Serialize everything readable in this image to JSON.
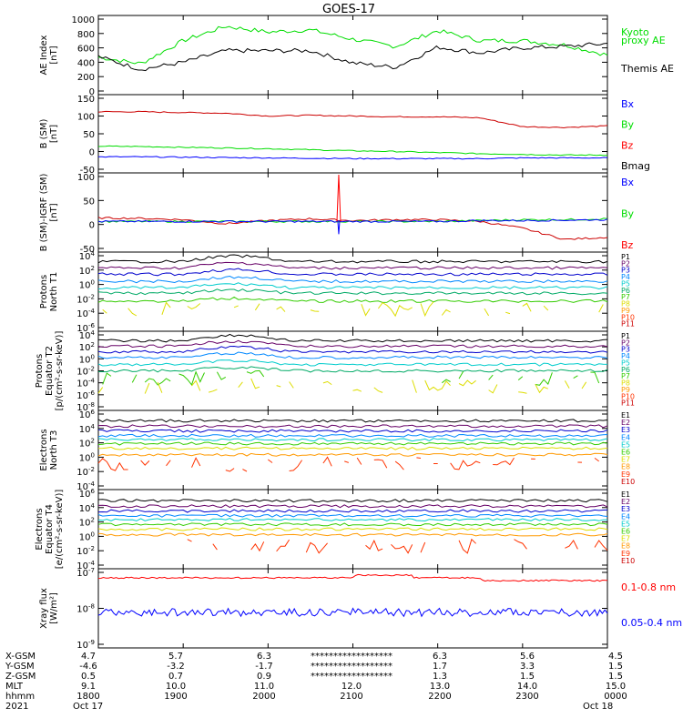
{
  "title": "GOES-17",
  "colors": {
    "black": "#000000",
    "red": "#ff0000",
    "green": "#00dd00",
    "blue": "#0000ff",
    "darkred": "#cc0000",
    "axis": "#000000"
  },
  "panels": [
    {
      "id": "ae",
      "ylabel": [
        "AE Index",
        "[nT]"
      ],
      "ticks": [
        "1000",
        "800",
        "600",
        "400",
        "200",
        "0"
      ],
      "legend": [
        {
          "text": "Kyoto",
          "color": "#00dd00"
        },
        {
          "text": "proxy AE",
          "color": "#00dd00"
        },
        {
          "text": "Themis AE",
          "color": "#000000"
        }
      ]
    },
    {
      "id": "bsm",
      "ylabel": [
        "B (SM)",
        "[nT]"
      ],
      "ticks": [
        "150",
        "100",
        "50",
        "0",
        "-50"
      ],
      "legend": [
        {
          "text": "Bx",
          "color": "#0000ff"
        },
        {
          "text": "By",
          "color": "#00dd00"
        },
        {
          "text": "Bz",
          "color": "#ff0000"
        },
        {
          "text": "Bmag",
          "color": "#000000"
        }
      ]
    },
    {
      "id": "bigrf",
      "ylabel": [
        "B (SM)-IGRF (SM)",
        "[nT]"
      ],
      "ticks": [
        "100",
        "50",
        "0",
        "-50"
      ],
      "legend": [
        {
          "text": "Bx",
          "color": "#0000ff"
        },
        {
          "text": "By",
          "color": "#00dd00"
        },
        {
          "text": "Bz",
          "color": "#ff0000"
        }
      ]
    },
    {
      "id": "pnt1",
      "ylabel": [
        "Protons",
        "North T1"
      ],
      "ticks": [
        "10^4",
        "10^2",
        "10^0",
        "10^-2",
        "10^-4",
        "10^-6"
      ],
      "legend": [
        {
          "text": "P1",
          "color": "#000000"
        },
        {
          "text": "P2",
          "color": "#660066"
        },
        {
          "text": "P3",
          "color": "#0000cc"
        },
        {
          "text": "P4",
          "color": "#0088ff"
        },
        {
          "text": "P5",
          "color": "#00cccc"
        },
        {
          "text": "P6",
          "color": "#00aa66"
        },
        {
          "text": "P7",
          "color": "#33cc00"
        },
        {
          "text": "P8",
          "color": "#dddd00"
        },
        {
          "text": "P9",
          "color": "#ff9900"
        },
        {
          "text": "P10",
          "color": "#ff3300"
        },
        {
          "text": "P11",
          "color": "#cc0000"
        }
      ]
    },
    {
      "id": "pet2",
      "ylabel": [
        "Protons",
        "Equator T2",
        "[p/(cm²-s-sr-keV)]"
      ],
      "ticks": [
        "10^4",
        "10^2",
        "10^0",
        "10^-2",
        "10^-4",
        "10^-6",
        "10^-8"
      ],
      "legend": [
        {
          "text": "P1",
          "color": "#000000"
        },
        {
          "text": "P2",
          "color": "#660066"
        },
        {
          "text": "P3",
          "color": "#0000cc"
        },
        {
          "text": "P4",
          "color": "#0088ff"
        },
        {
          "text": "P5",
          "color": "#00cccc"
        },
        {
          "text": "P6",
          "color": "#00aa66"
        },
        {
          "text": "P7",
          "color": "#33cc00"
        },
        {
          "text": "P8",
          "color": "#dddd00"
        },
        {
          "text": "P9",
          "color": "#ff9900"
        },
        {
          "text": "P10",
          "color": "#ff3300"
        },
        {
          "text": "P11",
          "color": "#cc0000"
        }
      ]
    },
    {
      "id": "ent3",
      "ylabel": [
        "Electrons",
        "North T3"
      ],
      "ticks": [
        "10^6",
        "10^4",
        "10^2",
        "10^0",
        "10^-2",
        "10^-4"
      ],
      "legend": [
        {
          "text": "E1",
          "color": "#000000"
        },
        {
          "text": "E2",
          "color": "#660066"
        },
        {
          "text": "E3",
          "color": "#0000cc"
        },
        {
          "text": "E4",
          "color": "#0088ff"
        },
        {
          "text": "E5",
          "color": "#00cccc"
        },
        {
          "text": "E6",
          "color": "#33cc00"
        },
        {
          "text": "E7",
          "color": "#dddd00"
        },
        {
          "text": "E8",
          "color": "#ff9900"
        },
        {
          "text": "E9",
          "color": "#ff3300"
        },
        {
          "text": "E10",
          "color": "#cc0000"
        }
      ]
    },
    {
      "id": "eet4",
      "ylabel": [
        "Electrons",
        "Equator T4",
        "[e/(cm²-s-sr-keV)]"
      ],
      "ticks": [
        "10^6",
        "10^4",
        "10^2",
        "10^0",
        "10^-2",
        "10^-4"
      ],
      "legend": [
        {
          "text": "E1",
          "color": "#000000"
        },
        {
          "text": "E2",
          "color": "#660066"
        },
        {
          "text": "E3",
          "color": "#0000cc"
        },
        {
          "text": "E4",
          "color": "#0088ff"
        },
        {
          "text": "E5",
          "color": "#00cccc"
        },
        {
          "text": "E6",
          "color": "#33cc00"
        },
        {
          "text": "E7",
          "color": "#dddd00"
        },
        {
          "text": "E8",
          "color": "#ff9900"
        },
        {
          "text": "E9",
          "color": "#ff3300"
        },
        {
          "text": "E10",
          "color": "#cc0000"
        }
      ]
    },
    {
      "id": "xray",
      "ylabel": [
        "Xray flux",
        "[W/m²]"
      ],
      "ticks": [
        "10^-7",
        "10^-8",
        "10^-9"
      ],
      "legend": [
        {
          "text": "0.1-0.8 nm",
          "color": "#ff0000"
        },
        {
          "text": "0.05-0.4 nm",
          "color": "#0000ff"
        }
      ]
    }
  ],
  "footer": {
    "row_labels": [
      "X-GSM",
      "Y-GSM",
      "Z-GSM",
      "MLT",
      "hhmm",
      "2021"
    ],
    "columns": [
      [
        "4.7",
        "-4.6",
        "0.5",
        "9.1",
        "1800",
        "Oct 17"
      ],
      [
        "5.7",
        "-3.2",
        "0.7",
        "10.0",
        "1900",
        ""
      ],
      [
        "6.3",
        "-1.7",
        "0.9",
        "11.0",
        "2000",
        ""
      ],
      [
        "******************",
        "******************",
        "******************",
        "12.0",
        "2100",
        ""
      ],
      [
        "6.3",
        "1.7",
        "1.3",
        "13.0",
        "2200",
        ""
      ],
      [
        "5.6",
        "3.3",
        "1.5",
        "14.0",
        "2300",
        ""
      ],
      [
        "4.5",
        "1.5",
        "1.5",
        "15.0",
        "0000",
        "Oct 18"
      ]
    ]
  },
  "chart_data": [
    {
      "type": "line",
      "title": "GOES-17",
      "x": [
        "1800",
        "1830",
        "1900",
        "1930",
        "2000",
        "2030",
        "2100",
        "2130",
        "2200",
        "2230",
        "2300",
        "2330",
        "0000"
      ],
      "ylim": [
        0,
        1000
      ],
      "series": [
        {
          "name": "Kyoto proxy AE",
          "values": [
            470,
            380,
            700,
            900,
            820,
            850,
            720,
            620,
            840,
            700,
            700,
            640,
            500
          ]
        },
        {
          "name": "Themis AE",
          "values": [
            480,
            300,
            400,
            560,
            560,
            560,
            390,
            330,
            610,
            530,
            600,
            620,
            660
          ]
        }
      ]
    },
    {
      "type": "line",
      "ylim": [
        -50,
        150
      ],
      "series": [
        {
          "name": "Bz",
          "values": [
            112,
            112,
            110,
            108,
            100,
            102,
            100,
            98,
            98,
            95,
            70,
            68,
            72
          ]
        },
        {
          "name": "By",
          "values": [
            15,
            14,
            12,
            10,
            8,
            5,
            2,
            0,
            -3,
            -6,
            -8,
            -10,
            -10
          ]
        },
        {
          "name": "Bx",
          "values": [
            -15,
            -15,
            -16,
            -17,
            -18,
            -19,
            -20,
            -20,
            -20,
            -20,
            -18,
            -18,
            -18
          ]
        }
      ]
    },
    {
      "type": "line",
      "ylim": [
        -60,
        100
      ],
      "series": [
        {
          "name": "Bz",
          "values": [
            8,
            7,
            4,
            -5,
            2,
            6,
            2,
            4,
            4,
            0,
            -15,
            -40,
            -35
          ]
        },
        {
          "name": "By",
          "values": [
            0,
            0,
            0,
            0,
            0,
            0,
            0,
            0,
            0,
            2,
            4,
            4,
            6
          ]
        },
        {
          "name": "Bx",
          "values": [
            0,
            0,
            0,
            0,
            0,
            0,
            0,
            0,
            0,
            2,
            2,
            3,
            4
          ]
        }
      ]
    }
  ]
}
